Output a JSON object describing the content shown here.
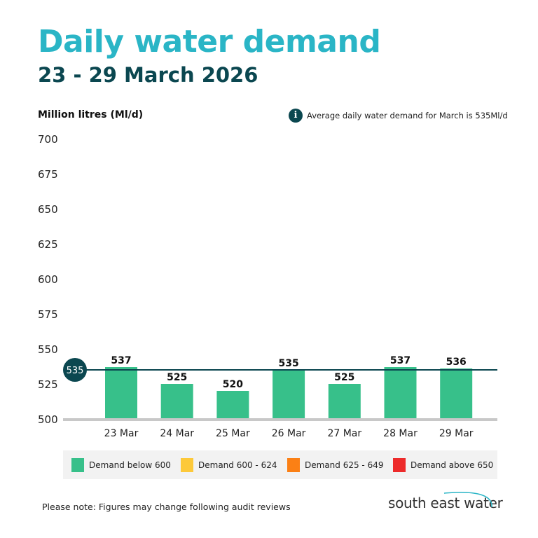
{
  "header": {
    "title": "Daily water demand",
    "subtitle": "23 - 29 March 2026"
  },
  "note": {
    "icon": "info-icon",
    "text": "Average daily water demand for March is 535Ml/d"
  },
  "footer": {
    "note": "Please note: Figures may change following audit reviews",
    "logo": "south east water"
  },
  "chart_data": {
    "type": "bar",
    "title": "Daily water demand",
    "subtitle": "23 - 29 March 2026",
    "ylabel": "Million litres (Ml/d)",
    "ylim": [
      500,
      700
    ],
    "yticks": [
      700,
      675,
      650,
      625,
      600,
      575,
      550,
      525,
      500
    ],
    "categories": [
      "23 Mar",
      "24 Mar",
      "25 Mar",
      "26 Mar",
      "27 Mar",
      "28 Mar",
      "29 Mar"
    ],
    "values": [
      537,
      525,
      520,
      535,
      525,
      537,
      536
    ],
    "reference_line": {
      "value": 535,
      "label": "535",
      "color": "#0b4750"
    },
    "bar_color": "#37c08a",
    "grid": false,
    "legend": {
      "placement": "bottom",
      "items": [
        {
          "label": "Demand below 600",
          "color": "#37c08a"
        },
        {
          "label": "Demand 600 - 624",
          "color": "#fdc93a"
        },
        {
          "label": "Demand 625 - 649",
          "color": "#fb8015"
        },
        {
          "label": "Demand above 650",
          "color": "#ed2b2b"
        }
      ]
    }
  }
}
